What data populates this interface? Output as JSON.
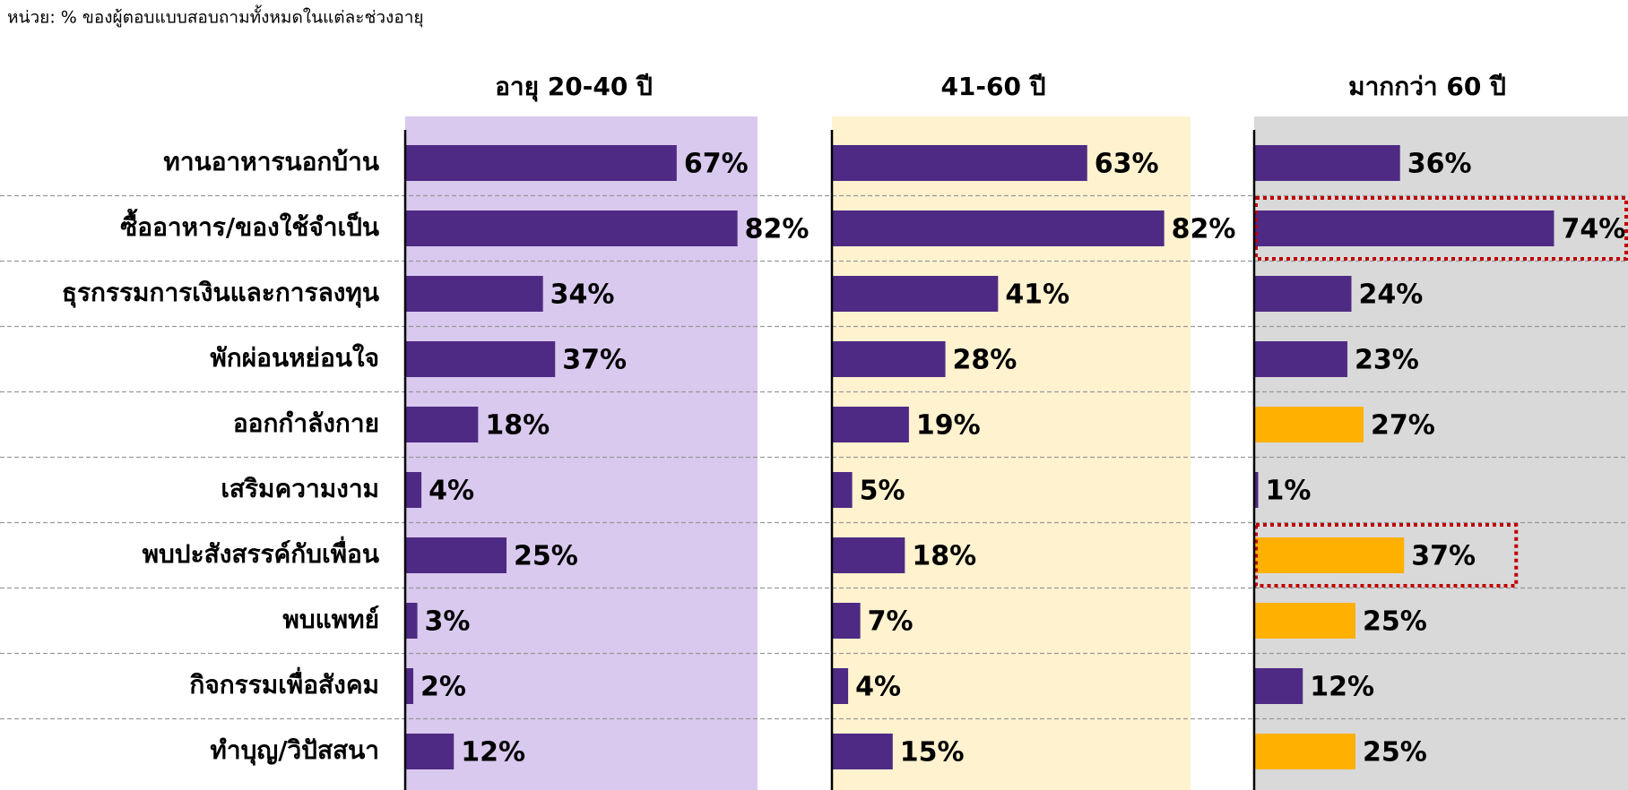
{
  "chart_data": {
    "type": "bar",
    "orientation": "horizontal",
    "subtitle": "หน่วย: % ของผู้ตอบแบบสอบถามทั้งหมดในแต่ละช่วงอายุ",
    "categories": [
      "ทานอาหารนอกบ้าน",
      "ซื้ออาหาร/ของใช้จำเป็น",
      "ธุรกรรมการเงินและการลงทุน",
      "พักผ่อนหย่อนใจ",
      "ออกกำลังกาย",
      "เสริมความงาม",
      "พบปะสังสรรค์กับเพื่อน",
      "พบแพทย์",
      "กิจกรรมเพื่อสังคม",
      "ทำบุญ/วิปัสสนา"
    ],
    "series": [
      {
        "name": "อายุ 20-40 ปี",
        "background": "#d9c9ee",
        "colors": [
          "#4f2a84",
          "#4f2a84",
          "#4f2a84",
          "#4f2a84",
          "#4f2a84",
          "#4f2a84",
          "#4f2a84",
          "#4f2a84",
          "#4f2a84",
          "#4f2a84"
        ],
        "values": [
          67,
          82,
          34,
          37,
          18,
          4,
          25,
          3,
          2,
          12
        ],
        "value_labels": [
          "67%",
          "82%",
          "34%",
          "37%",
          "18%",
          "4%",
          "25%",
          "3%",
          "2%",
          "12%"
        ]
      },
      {
        "name": "41-60 ปี",
        "background": "#fff2cf",
        "colors": [
          "#4f2a84",
          "#4f2a84",
          "#4f2a84",
          "#4f2a84",
          "#4f2a84",
          "#4f2a84",
          "#4f2a84",
          "#4f2a84",
          "#4f2a84",
          "#4f2a84"
        ],
        "values": [
          63,
          82,
          41,
          28,
          19,
          5,
          18,
          7,
          4,
          15
        ],
        "value_labels": [
          "63%",
          "82%",
          "41%",
          "28%",
          "19%",
          "5%",
          "18%",
          "7%",
          "4%",
          "15%"
        ]
      },
      {
        "name": "มากกว่า 60 ปี",
        "background": "#d9d9d9",
        "colors": [
          "#4f2a84",
          "#4f2a84",
          "#4f2a84",
          "#4f2a84",
          "#ffb000",
          "#4f2a84",
          "#ffb000",
          "#ffb000",
          "#4f2a84",
          "#ffb000"
        ],
        "values": [
          36,
          74,
          24,
          23,
          27,
          1,
          37,
          25,
          12,
          25
        ],
        "value_labels": [
          "36%",
          "74%",
          "24%",
          "23%",
          "27%",
          "1%",
          "37%",
          "25%",
          "12%",
          "25%"
        ],
        "highlight": [
          1,
          6
        ]
      }
    ]
  }
}
